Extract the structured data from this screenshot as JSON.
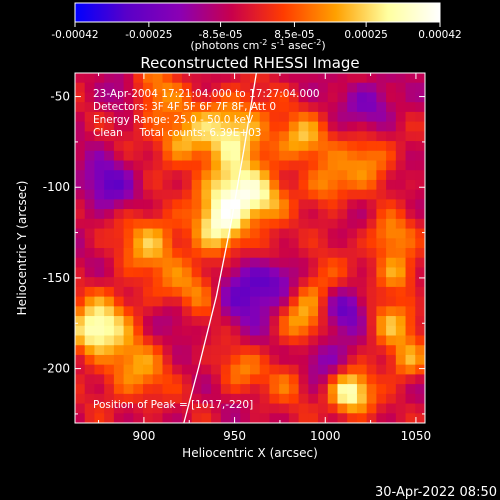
{
  "chart_data": {
    "type": "heatmap",
    "title": "Reconstructed RHESSI Image",
    "xlabel": "Heliocentric X (arcsec)",
    "ylabel": "Heliocentric Y (arcsec)",
    "xlim": [
      862,
      1055
    ],
    "ylim": [
      -230,
      -37
    ],
    "x_ticks": [
      900,
      950,
      1000,
      1050
    ],
    "y_ticks": [
      -50,
      -100,
      -150,
      -200
    ],
    "colorbar": {
      "ticks": [
        "-0.00042",
        "-0.00025",
        "-8.5e-05",
        "8.5e-05",
        "0.00025",
        "0.00042"
      ],
      "tick_values": [
        -0.00042,
        -0.00025,
        -8.5e-05,
        8.5e-05,
        0.00025,
        0.00042
      ],
      "label_parts": [
        "(photons cm",
        "-2",
        " s",
        "-1",
        " asec",
        "-2",
        ")"
      ],
      "colormap": [
        "#0000ff",
        "#5a00c8",
        "#8a00b4",
        "#c8004c",
        "#ff3c00",
        "#ffa000",
        "#ffffa0",
        "#ffffff"
      ]
    },
    "annotations": [
      "23-Apr-2004 17:21:04.000 to 17:27:04.000",
      "Detectors: 3F 4F 5F 6F 7F 8F, Att 0",
      "Energy Range: 25.0 - 50.0 keV",
      "Clean     Total counts: 6.39E+03"
    ],
    "peak_label": "Position of Peak = [1017,-220]",
    "peak": [
      1017,
      -220
    ],
    "limb_curve": [
      [
        962,
        -37
      ],
      [
        955,
        -80
      ],
      [
        948,
        -120
      ],
      [
        940,
        -160
      ],
      [
        930,
        -200
      ],
      [
        922,
        -230
      ]
    ],
    "blobs": [
      {
        "x": 950,
        "y": -105,
        "v": 0.9,
        "r": 12
      },
      {
        "x": 952,
        "y": -70,
        "v": 0.75,
        "r": 15
      },
      {
        "x": 944,
        "y": -125,
        "v": 0.7,
        "r": 10
      },
      {
        "x": 930,
        "y": -160,
        "v": 0.55,
        "r": 14
      },
      {
        "x": 905,
        "y": -132,
        "v": 0.6,
        "r": 12
      },
      {
        "x": 880,
        "y": -175,
        "v": 0.55,
        "r": 12
      },
      {
        "x": 870,
        "y": -185,
        "v": 0.6,
        "r": 9
      },
      {
        "x": 895,
        "y": -205,
        "v": 0.5,
        "r": 14
      },
      {
        "x": 905,
        "y": -50,
        "v": 0.5,
        "r": 12
      },
      {
        "x": 922,
        "y": -75,
        "v": 0.55,
        "r": 10
      },
      {
        "x": 968,
        "y": -110,
        "v": 0.55,
        "r": 10
      },
      {
        "x": 990,
        "y": -75,
        "v": 0.6,
        "r": 10
      },
      {
        "x": 1005,
        "y": -100,
        "v": 0.55,
        "r": 9
      },
      {
        "x": 1028,
        "y": -85,
        "v": 0.5,
        "r": 11
      },
      {
        "x": 1040,
        "y": -130,
        "v": 0.55,
        "r": 9
      },
      {
        "x": 1045,
        "y": -150,
        "v": 0.55,
        "r": 8
      },
      {
        "x": 1000,
        "y": -160,
        "v": 0.55,
        "r": 12
      },
      {
        "x": 990,
        "y": -180,
        "v": 0.5,
        "r": 10
      },
      {
        "x": 1040,
        "y": -180,
        "v": 0.55,
        "r": 10
      },
      {
        "x": 1050,
        "y": -200,
        "v": 0.55,
        "r": 8
      },
      {
        "x": 1017,
        "y": -218,
        "v": 1.0,
        "r": 9
      },
      {
        "x": 985,
        "y": -210,
        "v": 0.45,
        "r": 10
      },
      {
        "x": 955,
        "y": -205,
        "v": 0.4,
        "r": 9
      },
      {
        "x": 975,
        "y": -140,
        "v": 0.4,
        "r": 9
      },
      {
        "x": 880,
        "y": -100,
        "v": -0.5,
        "r": 10
      },
      {
        "x": 920,
        "y": -175,
        "v": -0.35,
        "r": 9
      },
      {
        "x": 958,
        "y": -160,
        "v": -0.55,
        "r": 14
      },
      {
        "x": 978,
        "y": -152,
        "v": -0.5,
        "r": 10
      },
      {
        "x": 1013,
        "y": -170,
        "v": -0.6,
        "r": 10
      },
      {
        "x": 1000,
        "y": -200,
        "v": -0.45,
        "r": 12
      },
      {
        "x": 1030,
        "y": -55,
        "v": -0.4,
        "r": 10
      },
      {
        "x": 890,
        "y": -50,
        "v": -0.35,
        "r": 8
      }
    ]
  },
  "footer": {
    "timestamp": "30-Apr-2022 08:50"
  }
}
